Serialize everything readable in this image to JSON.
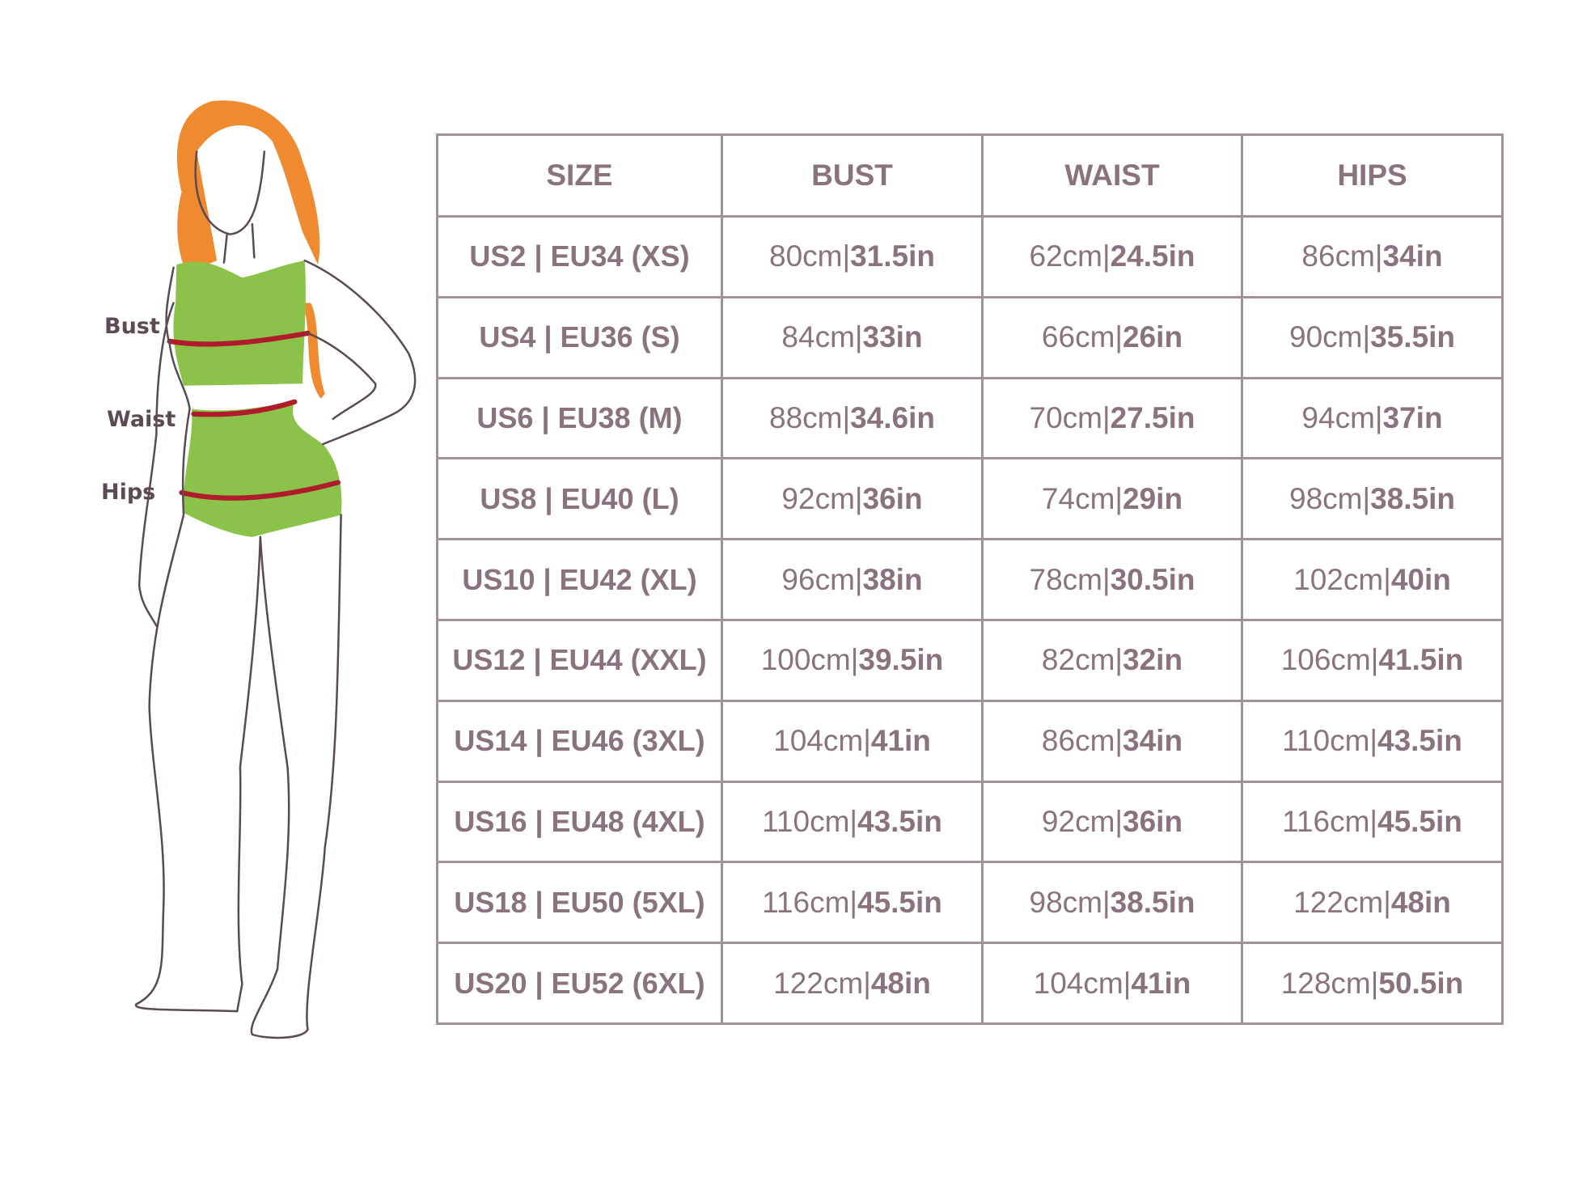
{
  "figure_labels": {
    "bust": "Bust",
    "waist": "Waist",
    "hips": "Hips"
  },
  "colors": {
    "text": "#8a737f",
    "border": "#a3919a",
    "label": "#5e4a55",
    "top": "#8bc34a",
    "hair": "#f08a30",
    "measure_line": "#b01c2c"
  },
  "table": {
    "headers": [
      "SIZE",
      "BUST",
      "WAIST",
      "HIPS"
    ],
    "rows": [
      {
        "size": "US2 | EU34 (XS)",
        "bust_cm": "80cm|",
        "bust_in": "31.5in",
        "waist_cm": "62cm|",
        "waist_in": "24.5in",
        "hips_cm": "86cm|",
        "hips_in": "34in"
      },
      {
        "size": "US4 | EU36 (S)",
        "bust_cm": "84cm|",
        "bust_in": "33in",
        "waist_cm": "66cm|",
        "waist_in": "26in",
        "hips_cm": "90cm|",
        "hips_in": "35.5in"
      },
      {
        "size": "US6 | EU38 (M)",
        "bust_cm": "88cm|",
        "bust_in": "34.6in",
        "waist_cm": "70cm|",
        "waist_in": "27.5in",
        "hips_cm": "94cm|",
        "hips_in": "37in"
      },
      {
        "size": "US8 | EU40 (L)",
        "bust_cm": "92cm|",
        "bust_in": "36in",
        "waist_cm": "74cm|",
        "waist_in": "29in",
        "hips_cm": "98cm|",
        "hips_in": "38.5in"
      },
      {
        "size": "US10 | EU42  (XL)",
        "bust_cm": "96cm|",
        "bust_in": "38in",
        "waist_cm": "78cm|",
        "waist_in": "30.5in",
        "hips_cm": "102cm|",
        "hips_in": "40in"
      },
      {
        "size": "US12 | EU44 (XXL)",
        "bust_cm": "100cm|",
        "bust_in": "39.5in",
        "waist_cm": "82cm|",
        "waist_in": "32in",
        "hips_cm": "106cm|",
        "hips_in": "41.5in"
      },
      {
        "size": "US14 | EU46 (3XL)",
        "bust_cm": "104cm|",
        "bust_in": "41in",
        "waist_cm": "86cm|",
        "waist_in": "34in",
        "hips_cm": "110cm|",
        "hips_in": "43.5in"
      },
      {
        "size": "US16 | EU48 (4XL)",
        "bust_cm": "110cm|",
        "bust_in": "43.5in",
        "waist_cm": "92cm|",
        "waist_in": "36in",
        "hips_cm": "116cm|",
        "hips_in": "45.5in"
      },
      {
        "size": "US18 | EU50 (5XL)",
        "bust_cm": "116cm|",
        "bust_in": "45.5in",
        "waist_cm": "98cm|",
        "waist_in": "38.5in",
        "hips_cm": "122cm|",
        "hips_in": "48in"
      },
      {
        "size": "US20 | EU52 (6XL)",
        "bust_cm": "122cm|",
        "bust_in": "48in",
        "waist_cm": "104cm|",
        "waist_in": "41in",
        "hips_cm": "128cm|",
        "hips_in": "50.5in"
      }
    ]
  }
}
